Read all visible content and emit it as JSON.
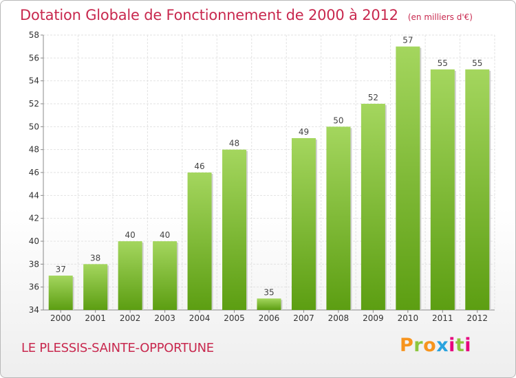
{
  "title": "Dotation Globale de Fonctionnement de 2000 à 2012",
  "unit_note": "(en milliers d'€)",
  "commune": "LE PLESSIS-SAINTE-OPPORTUNE",
  "logo": {
    "text": "Proxiti",
    "colors": [
      "#f7941d",
      "#2aa3de",
      "#8cc63f",
      "#e6007e"
    ]
  },
  "colors": {
    "bar_top": "#a4d65e",
    "bar_bottom": "#5c9e12",
    "title": "#c8284e"
  },
  "chart_data": {
    "type": "bar",
    "title": "Dotation Globale de Fonctionnement de 2000 à 2012",
    "subtitle": "(en milliers d'€)",
    "xlabel": "",
    "ylabel": "",
    "categories": [
      "2000",
      "2001",
      "2002",
      "2003",
      "2004",
      "2005",
      "2006",
      "2007",
      "2008",
      "2009",
      "2010",
      "2011",
      "2012"
    ],
    "values": [
      37,
      38,
      40,
      40,
      46,
      48,
      35,
      49,
      50,
      52,
      57,
      55,
      55
    ],
    "ylim": [
      34,
      58
    ],
    "yticks": [
      34,
      36,
      38,
      40,
      42,
      44,
      46,
      48,
      50,
      52,
      54,
      56,
      58
    ],
    "grid": true,
    "data_labels": true
  }
}
